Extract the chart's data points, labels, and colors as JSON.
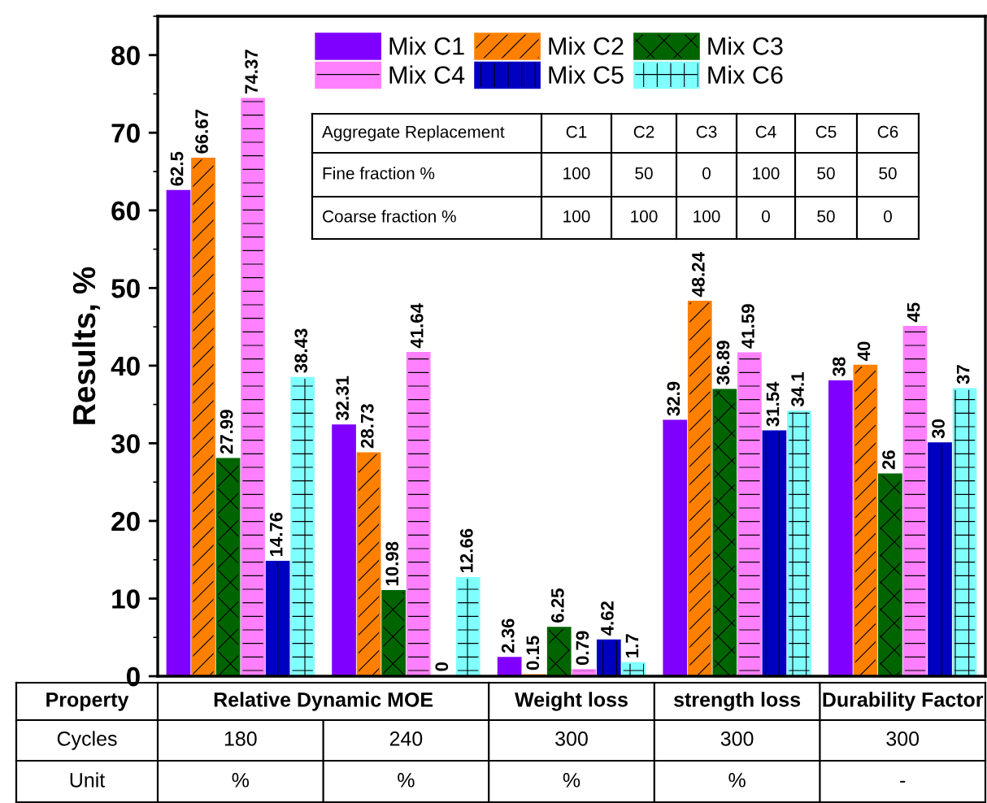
{
  "chart_data": {
    "type": "bar",
    "ylabel": "Results, %",
    "categories": [
      null,
      null,
      null,
      null,
      null
    ],
    "series": [
      {
        "name": "Mix C1",
        "color": "#8000ff",
        "values": [
          62.5,
          32.31,
          2.36,
          32.9,
          38
        ]
      },
      {
        "name": "Mix C2",
        "color": "#ff8000",
        "values": [
          66.67,
          28.73,
          0.15,
          48.24,
          40
        ]
      },
      {
        "name": "Mix C3",
        "color": "#006400",
        "values": [
          27.99,
          10.98,
          6.25,
          36.89,
          26
        ]
      },
      {
        "name": "Mix C4",
        "color": "#ff80ff",
        "values": [
          74.37,
          41.64,
          0.79,
          41.59,
          45
        ]
      },
      {
        "name": "Mix C5",
        "color": "#0000c0",
        "values": [
          14.76,
          0,
          4.62,
          31.54,
          30
        ]
      },
      {
        "name": "Mix C6",
        "color": "#80ffff",
        "values": [
          38.43,
          12.66,
          1.7,
          34.1,
          37
        ]
      }
    ],
    "ylim": [
      0,
      85
    ],
    "yticks": [
      0,
      10,
      20,
      30,
      40,
      50,
      60,
      70,
      80
    ],
    "data_labels": true,
    "legend": "top",
    "grid": false,
    "annotations": [
      "Aggregate Replacement",
      "C1",
      "C2",
      "C3",
      "C4",
      "C5",
      "C6",
      "Fine fraction %",
      "100",
      "50",
      "0",
      "100",
      "50",
      "50",
      "Coarse fraction %",
      "100",
      "100",
      "100",
      "0",
      "50",
      "0",
      "Property",
      "Relative Dynamic MOE",
      "Weight loss",
      "strength loss",
      "Durability Factor",
      "Cycles",
      "180",
      "240",
      "300",
      "300",
      "300",
      "Unit",
      "%",
      "%",
      "%",
      "%",
      "-"
    ]
  }
}
